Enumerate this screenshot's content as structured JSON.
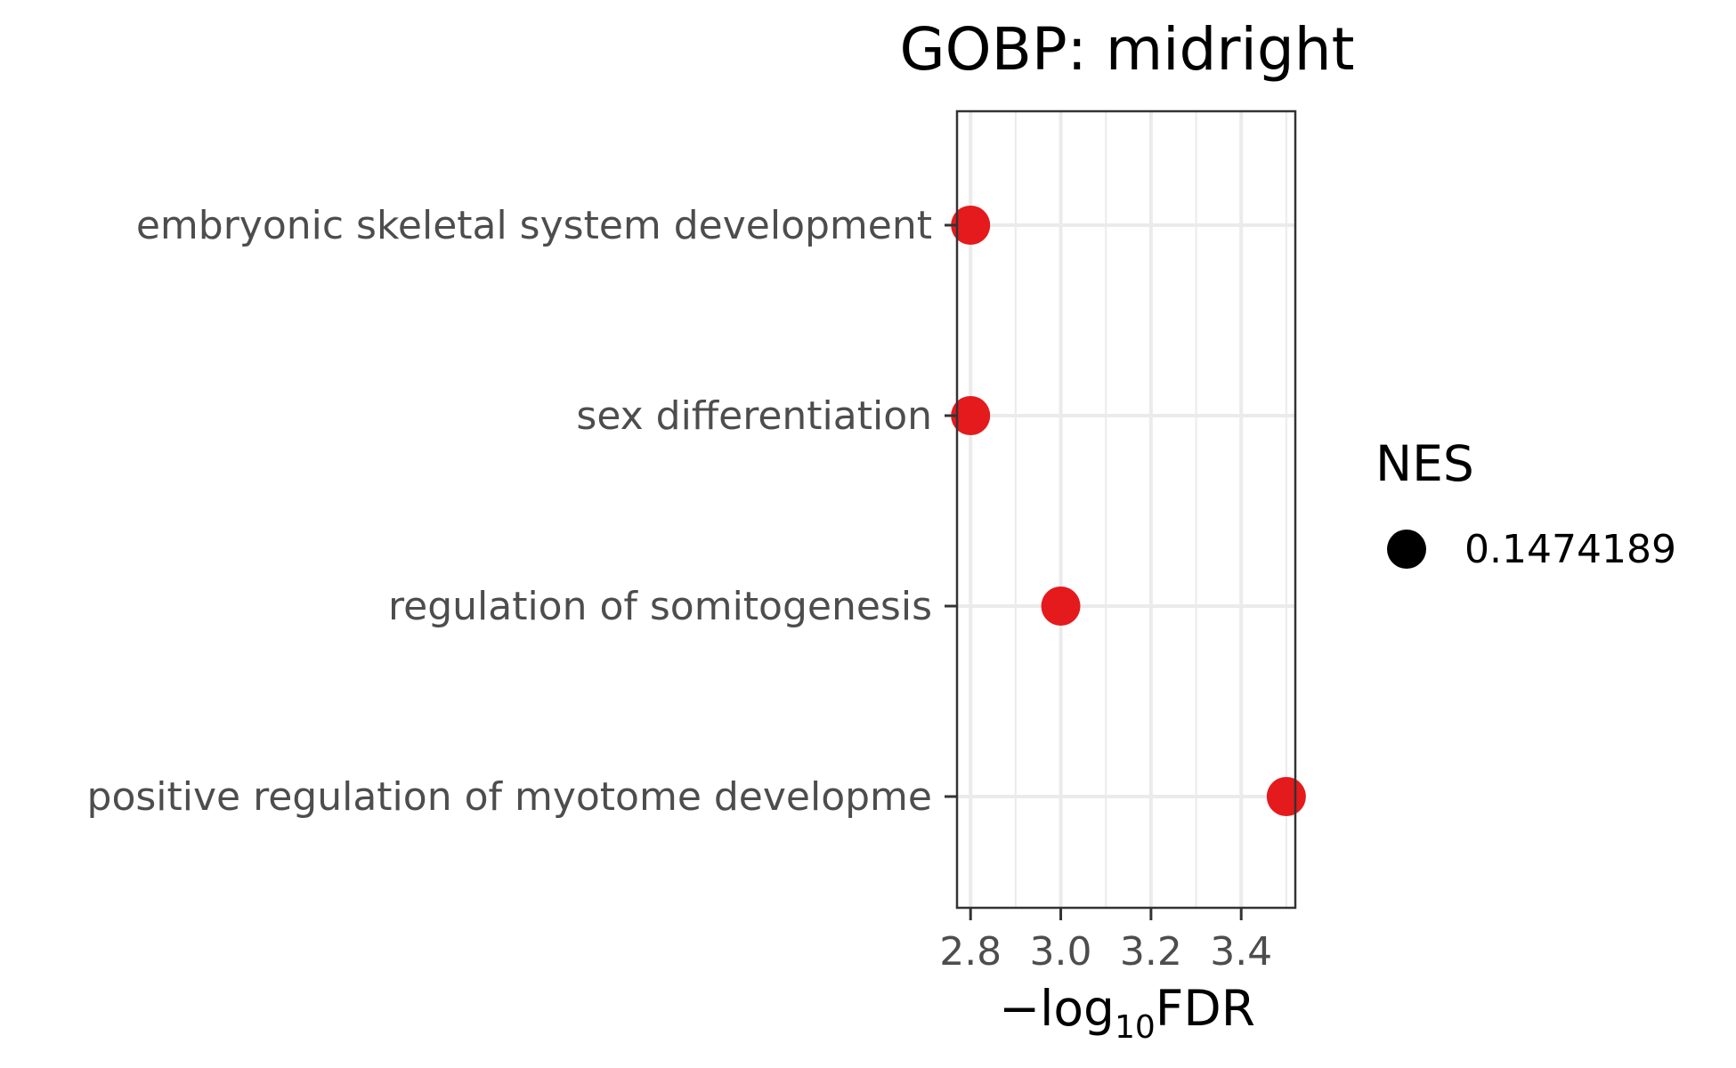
{
  "chart_data": {
    "type": "scatter",
    "title": "GOBP: midright",
    "xlabel_main": "−log",
    "xlabel_sub": "10",
    "xlabel_tail": "FDR",
    "xlim": [
      2.77,
      3.52
    ],
    "x_ticks": [
      2.8,
      3.0,
      3.2,
      3.4
    ],
    "x_tick_labels": [
      "2.8",
      "3.0",
      "3.2",
      "3.4"
    ],
    "x_minor_ticks": [
      2.9,
      3.1,
      3.3,
      3.5
    ],
    "categories": [
      "embryonic skeletal system development",
      "sex differentiation",
      "regulation of somitogenesis",
      "positive regulation of myotome developme"
    ],
    "values": [
      2.8,
      2.8,
      3.0,
      3.5
    ],
    "point_color": "#e41a1c",
    "grid": true,
    "legend": {
      "title": "NES",
      "position": "right",
      "items": [
        {
          "label": "0.1474189",
          "color": "#000000"
        }
      ]
    }
  }
}
